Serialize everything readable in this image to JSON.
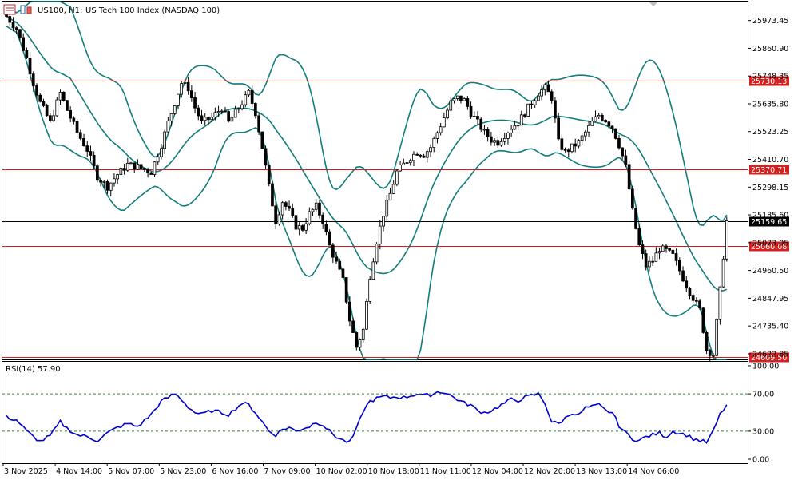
{
  "header": {
    "symbol": "US100, H1:",
    "description": "US Tech 100 Index (NASDAQ 100)"
  },
  "colors": {
    "candle": "#000000",
    "bands": "#127d7a",
    "level_line": "#d62020",
    "current_line": "#000000",
    "rsi_line": "#0000cc",
    "rsi_levels": "#2a8a2a",
    "grid_border": "#000000"
  },
  "chart_data": [
    {
      "type": "candlestick",
      "title": "US100, H1: US Tech 100 Index (NASDAQ 100)",
      "ylim": [
        24600,
        26050
      ],
      "y_ticks": [
        "25973.45",
        "25860.90",
        "25748.35",
        "25635.80",
        "25523.25",
        "25410.70",
        "25298.15",
        "25185.60",
        "25073.05",
        "24960.50",
        "24847.95",
        "24735.40",
        "24622.85"
      ],
      "x_ticks": [
        "3 Nov 2025",
        "4 Nov 14:00",
        "5 Nov 07:00",
        "5 Nov 23:00",
        "6 Nov 16:00",
        "7 Nov 09:00",
        "10 Nov 02:00",
        "10 Nov 18:00",
        "11 Nov 11:00",
        "12 Nov 04:00",
        "12 Nov 20:00",
        "13 Nov 13:00",
        "14 Nov 06:00"
      ],
      "horizontal_levels": [
        "25730.13",
        "25370.71",
        "25060.08",
        "24609.50"
      ],
      "current_price": "25159.65",
      "indicator": "Bollinger Bands",
      "close_path": [
        [
          0,
          25990
        ],
        [
          3,
          25940
        ],
        [
          6,
          25820
        ],
        [
          8,
          25720
        ],
        [
          10,
          25640
        ],
        [
          13,
          25560
        ],
        [
          16,
          25680
        ],
        [
          18,
          25610
        ],
        [
          21,
          25520
        ],
        [
          24,
          25450
        ],
        [
          27,
          25340
        ],
        [
          30,
          25300
        ],
        [
          33,
          25350
        ],
        [
          36,
          25390
        ],
        [
          39,
          25380
        ],
        [
          43,
          25360
        ],
        [
          46,
          25470
        ],
        [
          48,
          25560
        ],
        [
          50,
          25640
        ],
        [
          52,
          25720
        ],
        [
          54,
          25700
        ],
        [
          56,
          25620
        ],
        [
          58,
          25560
        ],
        [
          61,
          25580
        ],
        [
          64,
          25620
        ],
        [
          66,
          25560
        ],
        [
          68,
          25600
        ],
        [
          70,
          25640
        ],
        [
          72,
          25680
        ],
        [
          74,
          25600
        ],
        [
          76,
          25460
        ],
        [
          78,
          25300
        ],
        [
          80,
          25160
        ],
        [
          82,
          25240
        ],
        [
          84,
          25200
        ],
        [
          86,
          25140
        ],
        [
          88,
          25130
        ],
        [
          90,
          25190
        ],
        [
          92,
          25220
        ],
        [
          94,
          25160
        ],
        [
          96,
          25060
        ],
        [
          98,
          24990
        ],
        [
          100,
          24920
        ],
        [
          102,
          24760
        ],
        [
          104,
          24650
        ],
        [
          106,
          24720
        ],
        [
          108,
          24940
        ],
        [
          110,
          25080
        ],
        [
          112,
          25190
        ],
        [
          114,
          25270
        ],
        [
          116,
          25360
        ],
        [
          118,
          25390
        ],
        [
          120,
          25420
        ],
        [
          122,
          25440
        ],
        [
          124,
          25430
        ],
        [
          126,
          25460
        ],
        [
          128,
          25520
        ],
        [
          130,
          25580
        ],
        [
          132,
          25640
        ],
        [
          134,
          25660
        ],
        [
          136,
          25650
        ],
        [
          138,
          25600
        ],
        [
          140,
          25560
        ],
        [
          142,
          25520
        ],
        [
          144,
          25490
        ],
        [
          146,
          25480
        ],
        [
          148,
          25510
        ],
        [
          150,
          25540
        ],
        [
          152,
          25560
        ],
        [
          154,
          25600
        ],
        [
          156,
          25640
        ],
        [
          158,
          25680
        ],
        [
          160,
          25700
        ],
        [
          162,
          25660
        ],
        [
          164,
          25480
        ],
        [
          166,
          25440
        ],
        [
          168,
          25460
        ],
        [
          170,
          25480
        ],
        [
          172,
          25520
        ],
        [
          174,
          25560
        ],
        [
          176,
          25590
        ],
        [
          178,
          25570
        ],
        [
          180,
          25540
        ],
        [
          182,
          25470
        ],
        [
          184,
          25380
        ],
        [
          186,
          25200
        ],
        [
          188,
          25060
        ],
        [
          190,
          24980
        ],
        [
          192,
          25000
        ],
        [
          194,
          25050
        ],
        [
          196,
          25040
        ],
        [
          198,
          25020
        ],
        [
          200,
          24960
        ],
        [
          202,
          24900
        ],
        [
          204,
          24850
        ],
        [
          206,
          24800
        ],
        [
          208,
          24640
        ],
        [
          210,
          24620
        ],
        [
          212,
          24880
        ],
        [
          214,
          25159.65
        ]
      ]
    },
    {
      "type": "line",
      "title": "RSI(14) 57.90",
      "ylim": [
        0,
        100
      ],
      "y_ticks": [
        "100.00",
        "70.00",
        "30.00",
        "0.00"
      ],
      "levels": [
        70,
        30
      ],
      "values": [
        [
          0,
          45
        ],
        [
          3,
          42
        ],
        [
          6,
          30
        ],
        [
          8,
          24
        ],
        [
          10,
          19
        ],
        [
          13,
          25
        ],
        [
          16,
          40
        ],
        [
          18,
          33
        ],
        [
          21,
          26
        ],
        [
          24,
          24
        ],
        [
          27,
          20
        ],
        [
          30,
          28
        ],
        [
          33,
          34
        ],
        [
          36,
          38
        ],
        [
          39,
          35
        ],
        [
          43,
          48
        ],
        [
          46,
          62
        ],
        [
          48,
          66
        ],
        [
          50,
          70
        ],
        [
          52,
          64
        ],
        [
          54,
          56
        ],
        [
          56,
          50
        ],
        [
          58,
          48
        ],
        [
          61,
          52
        ],
        [
          64,
          50
        ],
        [
          66,
          48
        ],
        [
          68,
          54
        ],
        [
          70,
          60
        ],
        [
          72,
          58
        ],
        [
          74,
          50
        ],
        [
          76,
          40
        ],
        [
          78,
          30
        ],
        [
          80,
          26
        ],
        [
          82,
          32
        ],
        [
          84,
          34
        ],
        [
          86,
          30
        ],
        [
          88,
          33
        ],
        [
          90,
          35
        ],
        [
          92,
          40
        ],
        [
          94,
          37
        ],
        [
          96,
          30
        ],
        [
          98,
          24
        ],
        [
          100,
          20
        ],
        [
          102,
          18
        ],
        [
          104,
          32
        ],
        [
          106,
          52
        ],
        [
          108,
          62
        ],
        [
          110,
          65
        ],
        [
          112,
          67
        ],
        [
          114,
          66
        ],
        [
          116,
          67
        ],
        [
          118,
          66
        ],
        [
          120,
          68
        ],
        [
          122,
          70
        ],
        [
          124,
          68
        ],
        [
          126,
          69
        ],
        [
          128,
          72
        ],
        [
          130,
          72
        ],
        [
          132,
          68
        ],
        [
          134,
          64
        ],
        [
          136,
          60
        ],
        [
          138,
          58
        ],
        [
          140,
          52
        ],
        [
          142,
          50
        ],
        [
          144,
          52
        ],
        [
          146,
          56
        ],
        [
          148,
          60
        ],
        [
          150,
          64
        ],
        [
          152,
          63
        ],
        [
          154,
          66
        ],
        [
          156,
          68
        ],
        [
          158,
          70
        ],
        [
          160,
          60
        ],
        [
          162,
          40
        ],
        [
          164,
          38
        ],
        [
          166,
          44
        ],
        [
          168,
          50
        ],
        [
          170,
          47
        ],
        [
          172,
          55
        ],
        [
          174,
          56
        ],
        [
          176,
          58
        ],
        [
          178,
          52
        ],
        [
          180,
          50
        ],
        [
          182,
          36
        ],
        [
          184,
          28
        ],
        [
          186,
          22
        ],
        [
          188,
          20
        ],
        [
          190,
          24
        ],
        [
          192,
          26
        ],
        [
          194,
          28
        ],
        [
          196,
          24
        ],
        [
          198,
          30
        ],
        [
          200,
          28
        ],
        [
          202,
          26
        ],
        [
          204,
          22
        ],
        [
          206,
          20
        ],
        [
          208,
          18
        ],
        [
          210,
          30
        ],
        [
          212,
          48
        ],
        [
          214,
          57.9
        ]
      ]
    }
  ]
}
